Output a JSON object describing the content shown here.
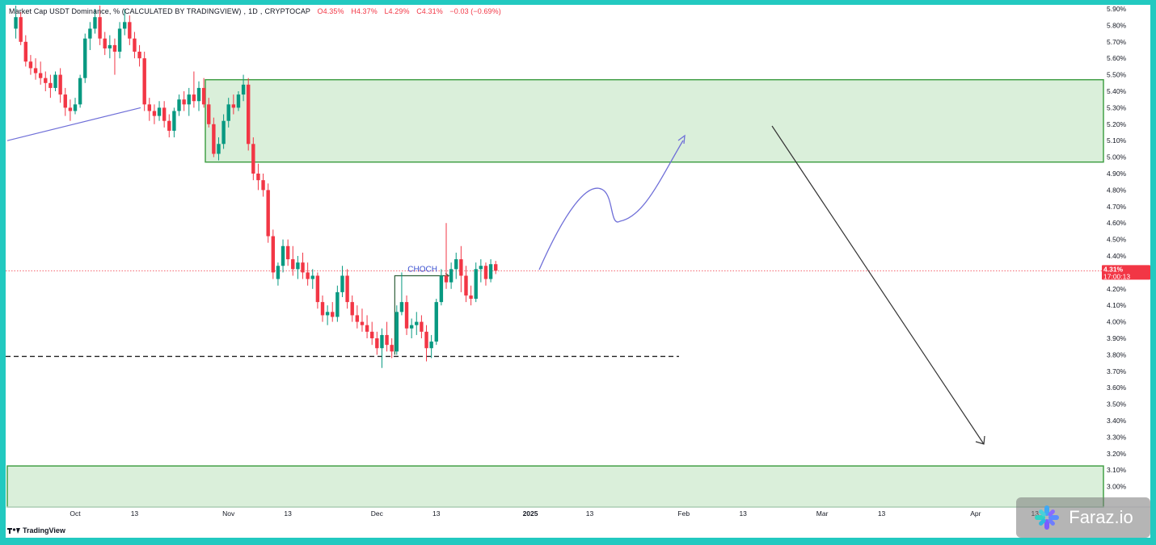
{
  "header": {
    "symbol": "Market Cap USDT Dominance, % (CALCULATED BY TRADINGVIEW)",
    "interval": "1D",
    "exchange": "CRYPTOCAP",
    "open": "O4.35%",
    "high": "H4.37%",
    "low": "L4.29%",
    "close": "C4.31%",
    "change": "−0.03 (−0.69%)"
  },
  "last_price": {
    "value": "4.31%",
    "countdown": "17:00:13"
  },
  "annotation": "CHOCH",
  "brand": "TradingView",
  "watermark": "Faraz.io",
  "colors": {
    "up": "#089981",
    "down": "#f23645",
    "zone": "#43a047",
    "zone_fill": "#d4ecd4",
    "trend": "#6f6fd8"
  },
  "chart_data": {
    "type": "candlestick",
    "y_unit": "%",
    "ylim": [
      2.9,
      5.92
    ],
    "y_ticks": [
      "5.90%",
      "5.80%",
      "5.70%",
      "5.60%",
      "5.50%",
      "5.40%",
      "5.30%",
      "5.20%",
      "5.10%",
      "5.00%",
      "4.90%",
      "4.80%",
      "4.70%",
      "4.60%",
      "4.50%",
      "4.40%",
      "4.30%",
      "4.20%",
      "4.10%",
      "4.00%",
      "3.90%",
      "3.80%",
      "3.70%",
      "3.60%",
      "3.50%",
      "3.40%",
      "3.30%",
      "3.20%",
      "3.10%",
      "3.00%"
    ],
    "x_ticks": [
      {
        "label": "Oct",
        "day": 0
      },
      {
        "label": "13",
        "day": 12
      },
      {
        "label": "Nov",
        "day": 31
      },
      {
        "label": "13",
        "day": 43
      },
      {
        "label": "Dec",
        "day": 61
      },
      {
        "label": "13",
        "day": 73
      },
      {
        "label": "2025",
        "day": 92,
        "bold": true
      },
      {
        "label": "13",
        "day": 104
      },
      {
        "label": "Feb",
        "day": 123
      },
      {
        "label": "13",
        "day": 135
      },
      {
        "label": "Mar",
        "day": 151
      },
      {
        "label": "13",
        "day": 163
      },
      {
        "label": "Apr",
        "day": 182
      },
      {
        "label": "13",
        "day": 194
      }
    ],
    "candles": [
      {
        "day": -12,
        "o": 5.78,
        "h": 5.92,
        "l": 5.72,
        "c": 5.85
      },
      {
        "day": -11,
        "o": 5.85,
        "h": 5.88,
        "l": 5.68,
        "c": 5.7
      },
      {
        "day": -10,
        "o": 5.7,
        "h": 5.74,
        "l": 5.55,
        "c": 5.58
      },
      {
        "day": -9,
        "o": 5.58,
        "h": 5.62,
        "l": 5.5,
        "c": 5.54
      },
      {
        "day": -8,
        "o": 5.54,
        "h": 5.6,
        "l": 5.47,
        "c": 5.51
      },
      {
        "day": -7,
        "o": 5.51,
        "h": 5.58,
        "l": 5.44,
        "c": 5.48
      },
      {
        "day": -6,
        "o": 5.48,
        "h": 5.52,
        "l": 5.4,
        "c": 5.45
      },
      {
        "day": -5,
        "o": 5.45,
        "h": 5.5,
        "l": 5.36,
        "c": 5.42
      },
      {
        "day": -4,
        "o": 5.42,
        "h": 5.52,
        "l": 5.4,
        "c": 5.5
      },
      {
        "day": -3,
        "o": 5.5,
        "h": 5.54,
        "l": 5.33,
        "c": 5.38
      },
      {
        "day": -2,
        "o": 5.38,
        "h": 5.42,
        "l": 5.25,
        "c": 5.3
      },
      {
        "day": -1,
        "o": 5.3,
        "h": 5.35,
        "l": 5.22,
        "c": 5.28
      },
      {
        "day": 0,
        "o": 5.28,
        "h": 5.36,
        "l": 5.26,
        "c": 5.32
      },
      {
        "day": 1,
        "o": 5.32,
        "h": 5.5,
        "l": 5.3,
        "c": 5.48
      },
      {
        "day": 2,
        "o": 5.48,
        "h": 5.75,
        "l": 5.45,
        "c": 5.72
      },
      {
        "day": 3,
        "o": 5.72,
        "h": 5.82,
        "l": 5.65,
        "c": 5.78
      },
      {
        "day": 4,
        "o": 5.78,
        "h": 5.9,
        "l": 5.75,
        "c": 5.85
      },
      {
        "day": 5,
        "o": 5.85,
        "h": 5.92,
        "l": 5.68,
        "c": 5.72
      },
      {
        "day": 6,
        "o": 5.72,
        "h": 5.76,
        "l": 5.62,
        "c": 5.66
      },
      {
        "day": 7,
        "o": 5.66,
        "h": 5.74,
        "l": 5.6,
        "c": 5.68
      },
      {
        "day": 8,
        "o": 5.68,
        "h": 5.72,
        "l": 5.5,
        "c": 5.64
      },
      {
        "day": 9,
        "o": 5.64,
        "h": 5.82,
        "l": 5.6,
        "c": 5.78
      },
      {
        "day": 10,
        "o": 5.78,
        "h": 5.9,
        "l": 5.74,
        "c": 5.82
      },
      {
        "day": 11,
        "o": 5.82,
        "h": 5.86,
        "l": 5.68,
        "c": 5.72
      },
      {
        "day": 12,
        "o": 5.72,
        "h": 5.76,
        "l": 5.6,
        "c": 5.64
      },
      {
        "day": 13,
        "o": 5.64,
        "h": 5.68,
        "l": 5.55,
        "c": 5.6
      },
      {
        "day": 14,
        "o": 5.6,
        "h": 5.64,
        "l": 5.28,
        "c": 5.32
      },
      {
        "day": 15,
        "o": 5.32,
        "h": 5.36,
        "l": 5.22,
        "c": 5.28
      },
      {
        "day": 16,
        "o": 5.28,
        "h": 5.32,
        "l": 5.2,
        "c": 5.25
      },
      {
        "day": 17,
        "o": 5.25,
        "h": 5.34,
        "l": 5.22,
        "c": 5.3
      },
      {
        "day": 18,
        "o": 5.3,
        "h": 5.34,
        "l": 5.18,
        "c": 5.22
      },
      {
        "day": 19,
        "o": 5.22,
        "h": 5.26,
        "l": 5.12,
        "c": 5.16
      },
      {
        "day": 20,
        "o": 5.16,
        "h": 5.3,
        "l": 5.12,
        "c": 5.28
      },
      {
        "day": 21,
        "o": 5.28,
        "h": 5.38,
        "l": 5.25,
        "c": 5.35
      },
      {
        "day": 22,
        "o": 5.35,
        "h": 5.4,
        "l": 5.28,
        "c": 5.32
      },
      {
        "day": 23,
        "o": 5.32,
        "h": 5.42,
        "l": 5.25,
        "c": 5.38
      },
      {
        "day": 24,
        "o": 5.38,
        "h": 5.52,
        "l": 5.3,
        "c": 5.34
      },
      {
        "day": 25,
        "o": 5.34,
        "h": 5.46,
        "l": 5.28,
        "c": 5.42
      },
      {
        "day": 26,
        "o": 5.42,
        "h": 5.48,
        "l": 5.3,
        "c": 5.32
      },
      {
        "day": 27,
        "o": 5.32,
        "h": 5.36,
        "l": 5.18,
        "c": 5.2
      },
      {
        "day": 28,
        "o": 5.2,
        "h": 5.24,
        "l": 5.0,
        "c": 5.02
      },
      {
        "day": 29,
        "o": 5.02,
        "h": 5.12,
        "l": 4.98,
        "c": 5.08
      },
      {
        "day": 30,
        "o": 5.08,
        "h": 5.26,
        "l": 5.05,
        "c": 5.22
      },
      {
        "day": 31,
        "o": 5.22,
        "h": 5.36,
        "l": 5.18,
        "c": 5.32
      },
      {
        "day": 32,
        "o": 5.32,
        "h": 5.38,
        "l": 5.26,
        "c": 5.3
      },
      {
        "day": 33,
        "o": 5.3,
        "h": 5.4,
        "l": 5.28,
        "c": 5.38
      },
      {
        "day": 34,
        "o": 5.38,
        "h": 5.5,
        "l": 5.34,
        "c": 5.44
      },
      {
        "day": 35,
        "o": 5.44,
        "h": 5.48,
        "l": 5.04,
        "c": 5.08
      },
      {
        "day": 36,
        "o": 5.08,
        "h": 5.12,
        "l": 4.86,
        "c": 4.9
      },
      {
        "day": 37,
        "o": 4.9,
        "h": 4.96,
        "l": 4.8,
        "c": 4.86
      },
      {
        "day": 38,
        "o": 4.86,
        "h": 4.9,
        "l": 4.76,
        "c": 4.8
      },
      {
        "day": 39,
        "o": 4.8,
        "h": 4.84,
        "l": 4.48,
        "c": 4.52
      },
      {
        "day": 40,
        "o": 4.52,
        "h": 4.56,
        "l": 4.26,
        "c": 4.3
      },
      {
        "day": 41,
        "o": 4.26,
        "h": 4.36,
        "l": 4.22,
        "c": 4.34
      },
      {
        "day": 42,
        "o": 4.34,
        "h": 4.5,
        "l": 4.3,
        "c": 4.46
      },
      {
        "day": 43,
        "o": 4.46,
        "h": 4.5,
        "l": 4.34,
        "c": 4.38
      },
      {
        "day": 44,
        "o": 4.38,
        "h": 4.46,
        "l": 4.28,
        "c": 4.32
      },
      {
        "day": 45,
        "o": 4.32,
        "h": 4.4,
        "l": 4.26,
        "c": 4.36
      },
      {
        "day": 46,
        "o": 4.36,
        "h": 4.42,
        "l": 4.26,
        "c": 4.3
      },
      {
        "day": 47,
        "o": 4.3,
        "h": 4.36,
        "l": 4.22,
        "c": 4.26
      },
      {
        "day": 48,
        "o": 4.26,
        "h": 4.32,
        "l": 4.2,
        "c": 4.28
      },
      {
        "day": 49,
        "o": 4.28,
        "h": 4.3,
        "l": 4.08,
        "c": 4.12
      },
      {
        "day": 50,
        "o": 4.12,
        "h": 4.16,
        "l": 4.0,
        "c": 4.04
      },
      {
        "day": 51,
        "o": 4.04,
        "h": 4.1,
        "l": 3.98,
        "c": 4.06
      },
      {
        "day": 52,
        "o": 4.06,
        "h": 4.12,
        "l": 4.0,
        "c": 4.03
      },
      {
        "day": 53,
        "o": 4.03,
        "h": 4.22,
        "l": 4.0,
        "c": 4.18
      },
      {
        "day": 54,
        "o": 4.18,
        "h": 4.34,
        "l": 4.15,
        "c": 4.28
      },
      {
        "day": 55,
        "o": 4.28,
        "h": 4.32,
        "l": 4.08,
        "c": 4.12
      },
      {
        "day": 56,
        "o": 4.12,
        "h": 4.16,
        "l": 4.0,
        "c": 4.04
      },
      {
        "day": 57,
        "o": 4.04,
        "h": 4.1,
        "l": 3.96,
        "c": 4.0
      },
      {
        "day": 58,
        "o": 4.0,
        "h": 4.08,
        "l": 3.94,
        "c": 3.98
      },
      {
        "day": 59,
        "o": 3.98,
        "h": 4.04,
        "l": 3.9,
        "c": 3.94
      },
      {
        "day": 60,
        "o": 3.94,
        "h": 4.0,
        "l": 3.86,
        "c": 3.9
      },
      {
        "day": 61,
        "o": 3.9,
        "h": 3.94,
        "l": 3.8,
        "c": 3.84
      },
      {
        "day": 62,
        "o": 3.84,
        "h": 3.96,
        "l": 3.72,
        "c": 3.92
      },
      {
        "day": 63,
        "o": 3.92,
        "h": 4.0,
        "l": 3.82,
        "c": 3.86
      },
      {
        "day": 64,
        "o": 3.86,
        "h": 3.9,
        "l": 3.78,
        "c": 3.82
      },
      {
        "day": 65,
        "o": 3.82,
        "h": 4.1,
        "l": 3.8,
        "c": 4.06
      },
      {
        "day": 66,
        "o": 4.06,
        "h": 4.3,
        "l": 4.04,
        "c": 4.12
      },
      {
        "day": 67,
        "o": 4.12,
        "h": 4.16,
        "l": 3.92,
        "c": 3.96
      },
      {
        "day": 68,
        "o": 3.96,
        "h": 4.02,
        "l": 3.9,
        "c": 3.98
      },
      {
        "day": 69,
        "o": 3.98,
        "h": 4.06,
        "l": 3.92,
        "c": 4.0
      },
      {
        "day": 70,
        "o": 4.0,
        "h": 4.04,
        "l": 3.9,
        "c": 3.94
      },
      {
        "day": 71,
        "o": 3.94,
        "h": 3.98,
        "l": 3.76,
        "c": 3.84
      },
      {
        "day": 72,
        "o": 3.84,
        "h": 3.92,
        "l": 3.78,
        "c": 3.88
      },
      {
        "day": 73,
        "o": 3.88,
        "h": 4.14,
        "l": 3.86,
        "c": 4.12
      },
      {
        "day": 74,
        "o": 4.12,
        "h": 4.32,
        "l": 4.1,
        "c": 4.28
      },
      {
        "day": 75,
        "o": 4.28,
        "h": 4.6,
        "l": 4.2,
        "c": 4.24
      },
      {
        "day": 76,
        "o": 4.24,
        "h": 4.36,
        "l": 4.2,
        "c": 4.32
      },
      {
        "day": 77,
        "o": 4.32,
        "h": 4.42,
        "l": 4.26,
        "c": 4.38
      },
      {
        "day": 78,
        "o": 4.38,
        "h": 4.46,
        "l": 4.18,
        "c": 4.28
      },
      {
        "day": 79,
        "o": 4.28,
        "h": 4.34,
        "l": 4.12,
        "c": 4.16
      },
      {
        "day": 80,
        "o": 4.16,
        "h": 4.22,
        "l": 4.1,
        "c": 4.14
      },
      {
        "day": 81,
        "o": 4.14,
        "h": 4.36,
        "l": 4.12,
        "c": 4.32
      },
      {
        "day": 82,
        "o": 4.32,
        "h": 4.38,
        "l": 4.24,
        "c": 4.34
      },
      {
        "day": 83,
        "o": 4.34,
        "h": 4.36,
        "l": 4.22,
        "c": 4.26
      },
      {
        "day": 84,
        "o": 4.26,
        "h": 4.38,
        "l": 4.24,
        "c": 4.35
      },
      {
        "day": 85,
        "o": 4.35,
        "h": 4.37,
        "l": 4.29,
        "c": 4.31
      }
    ]
  }
}
